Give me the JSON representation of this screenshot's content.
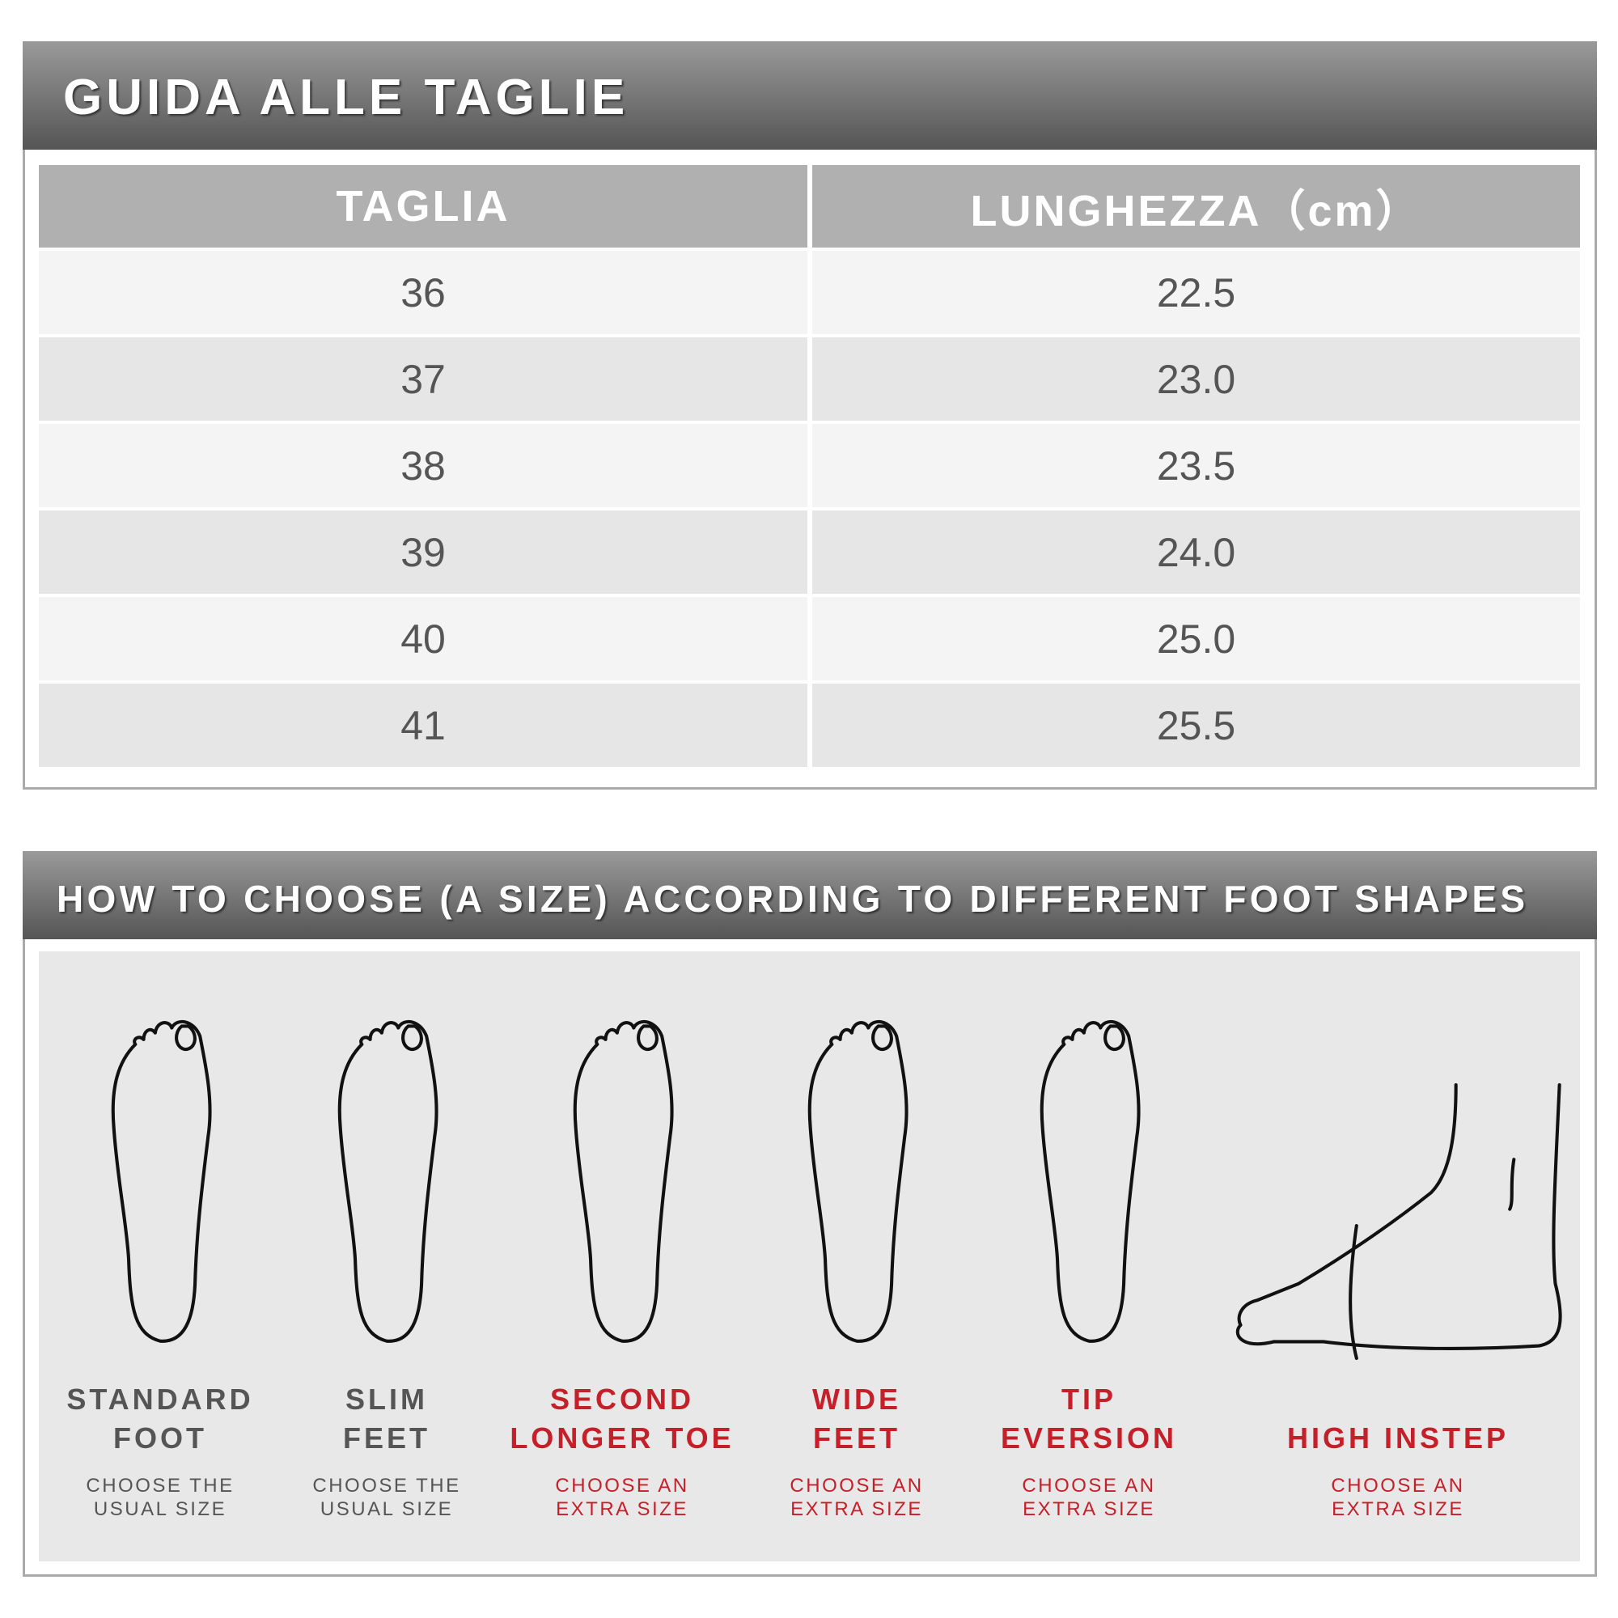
{
  "size_guide": {
    "title": "GUIDA ALLE TAGLIE",
    "columns": [
      "TAGLIA",
      "LUNGHEZZA（cm）"
    ],
    "rows": [
      [
        "36",
        "22.5"
      ],
      [
        "37",
        "23.0"
      ],
      [
        "38",
        "23.5"
      ],
      [
        "39",
        "24.0"
      ],
      [
        "40",
        "25.0"
      ],
      [
        "41",
        "25.5"
      ]
    ]
  },
  "foot_shapes": {
    "title": "HOW TO CHOOSE (A SIZE) ACCORDING TO DIFFERENT FOOT SHAPES",
    "colors": {
      "normal": "#555555",
      "extra": "#c4202a"
    },
    "items": [
      {
        "line1": "STANDARD",
        "line2": "FOOT",
        "advice1": "CHOOSE THE",
        "advice2": "USUAL SIZE",
        "icon": "standard-foot-icon",
        "style": "normal"
      },
      {
        "line1": "SLIM",
        "line2": "FEET",
        "advice1": "CHOOSE THE",
        "advice2": "USUAL SIZE",
        "icon": "slim-foot-icon",
        "style": "normal"
      },
      {
        "line1": "SECOND",
        "line2": "LONGER TOE",
        "advice1": "CHOOSE AN",
        "advice2": "EXTRA SIZE",
        "icon": "second-longer-toe-icon",
        "style": "extra"
      },
      {
        "line1": "WIDE",
        "line2": "FEET",
        "advice1": "CHOOSE AN",
        "advice2": "EXTRA SIZE",
        "icon": "wide-foot-icon",
        "style": "extra"
      },
      {
        "line1": "TIP",
        "line2": "EVERSION",
        "advice1": "CHOOSE AN",
        "advice2": "EXTRA SIZE",
        "icon": "tip-eversion-foot-icon",
        "style": "extra"
      },
      {
        "line1": "",
        "line2": "HIGH INSTEP",
        "advice1": "CHOOSE AN",
        "advice2": "EXTRA SIZE",
        "icon": "high-instep-foot-icon",
        "style": "extra"
      }
    ]
  }
}
